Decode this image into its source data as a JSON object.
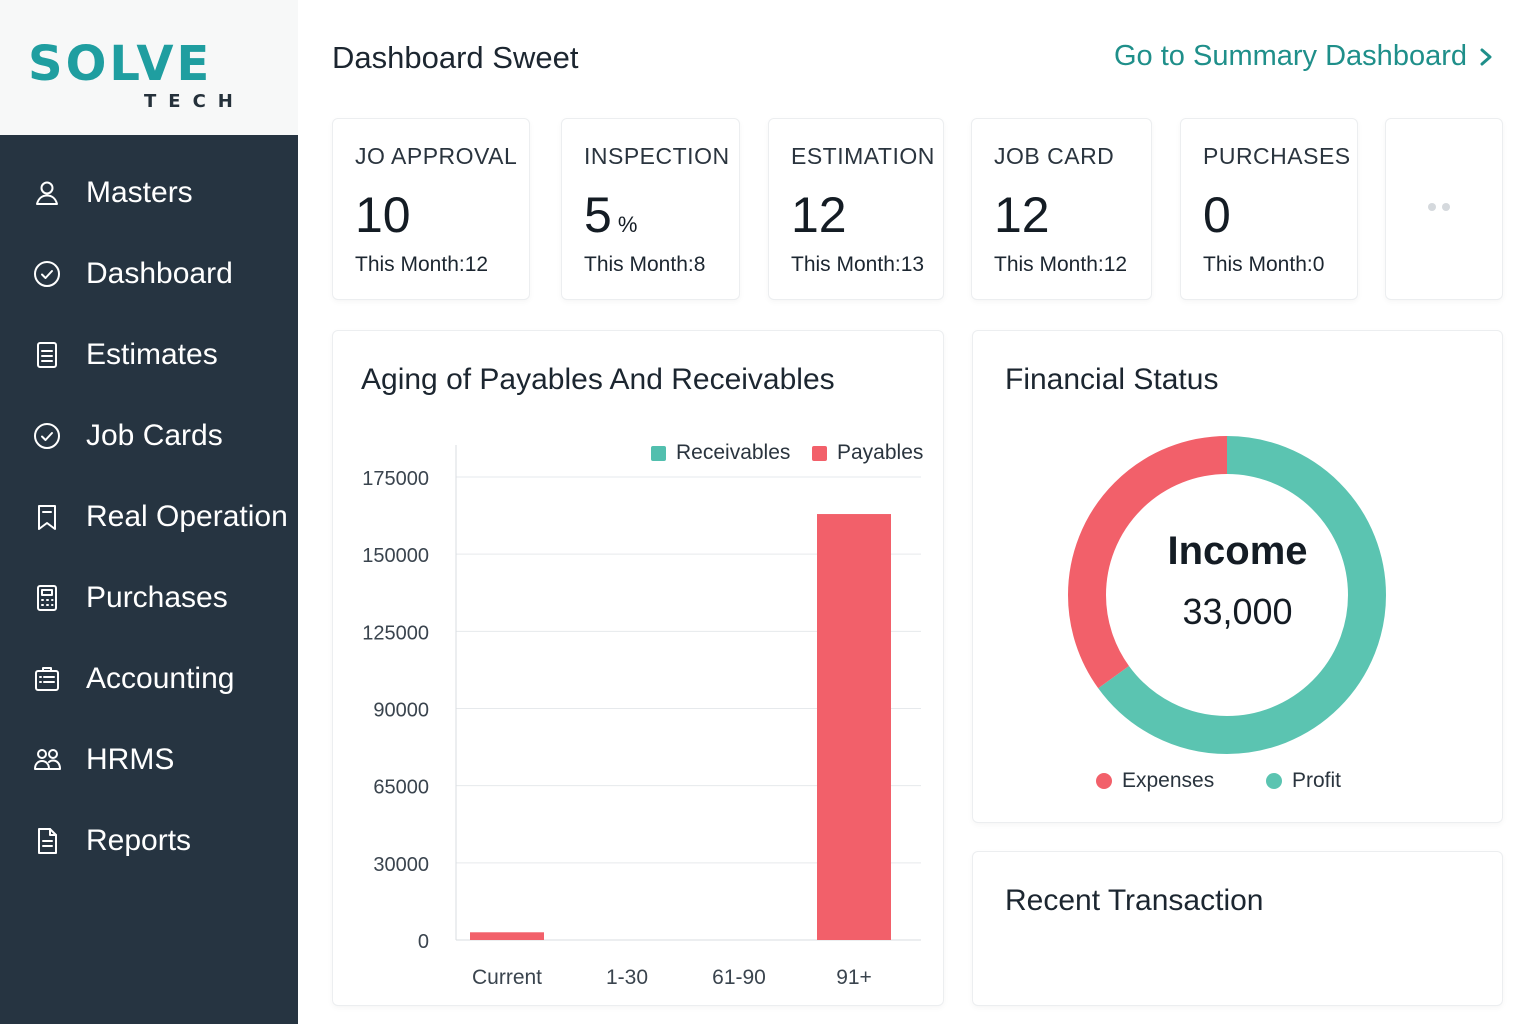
{
  "brand": {
    "name": "SOLVE",
    "tagline": "TECH"
  },
  "sidebar": {
    "items": [
      {
        "label": "Masters",
        "icon": "user-icon"
      },
      {
        "label": "Dashboard",
        "icon": "check-circle-icon"
      },
      {
        "label": "Estimates",
        "icon": "document-lines-icon"
      },
      {
        "label": "Job Cards",
        "icon": "check-circle-icon"
      },
      {
        "label": "Real Operation",
        "icon": "bookmark-icon"
      },
      {
        "label": "Purchases",
        "icon": "calculator-icon"
      },
      {
        "label": "Accounting",
        "icon": "clipboard-list-icon"
      },
      {
        "label": "HRMS",
        "icon": "users-icon"
      },
      {
        "label": "Reports",
        "icon": "report-icon"
      }
    ]
  },
  "header": {
    "title": "Dashboard Sweet",
    "summary_link": "Go to Summary Dashboard"
  },
  "stats": [
    {
      "label": "JO APPROVAL",
      "value": "10",
      "unit": "",
      "sub": "This Month:12"
    },
    {
      "label": "INSPECTION",
      "value": "5",
      "unit": "%",
      "sub": "This Month:8"
    },
    {
      "label": "ESTIMATION",
      "value": "12",
      "unit": "",
      "sub": "This Month:13"
    },
    {
      "label": "JOB CARD",
      "value": "12",
      "unit": "",
      "sub": "This Month:12"
    },
    {
      "label": "PURCHASES",
      "value": "0",
      "unit": "",
      "sub": "This Month:0"
    }
  ],
  "aging": {
    "title": "Aging of Payables And Receivables",
    "chart_data": {
      "type": "bar",
      "categories": [
        "Current",
        "1-30",
        "61-90",
        "91+"
      ],
      "series": [
        {
          "name": "Receivables",
          "values": [
            0,
            0,
            0,
            0
          ],
          "color": "#52bfae"
        },
        {
          "name": "Payables",
          "values": [
            3000,
            0,
            0,
            163000
          ],
          "color": "#f2606a"
        }
      ],
      "yticks": [
        "175000",
        "150000",
        "125000",
        "90000",
        "65000",
        "30000",
        "0"
      ],
      "legend_position": "top-right",
      "grid": true
    }
  },
  "financial": {
    "title": "Financial Status",
    "center_title": "Income",
    "center_value": "33,000",
    "chart_data": {
      "type": "pie",
      "slices": [
        {
          "name": "Profit",
          "value": 65,
          "color": "#5bc4b1"
        },
        {
          "name": "Expenses",
          "value": 35,
          "color": "#f2606a"
        }
      ],
      "legend_position": "bottom"
    },
    "legend": [
      "Expenses",
      "Profit"
    ]
  },
  "recent": {
    "title": "Recent Transaction"
  }
}
